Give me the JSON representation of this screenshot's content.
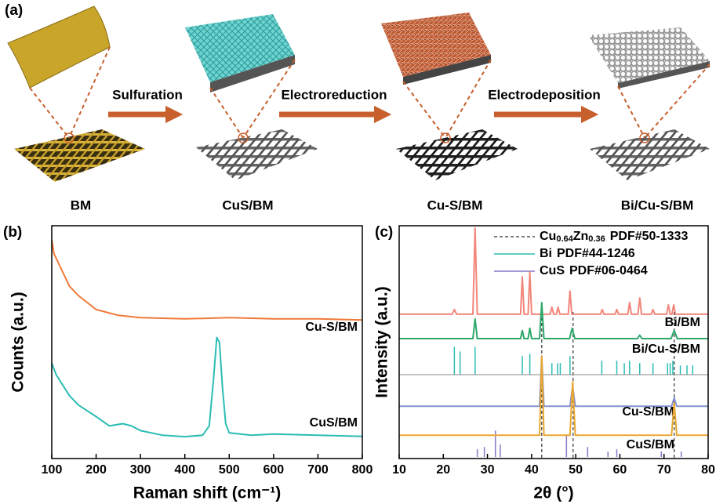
{
  "panel_a": {
    "label": "(a)",
    "steps": [
      "Sulfuration",
      "Electroreduction",
      "Electrodeposition"
    ],
    "samples": [
      "BM",
      "CuS/BM",
      "Cu-S/BM",
      "Bi/Cu-S/BM"
    ]
  },
  "chart_data": [
    {
      "type": "line",
      "panel_label": "(b)",
      "xlabel": "Raman shift (cm⁻¹)",
      "ylabel": "Counts (a.u.)",
      "xlim": [
        100,
        800
      ],
      "xticks": [
        100,
        200,
        300,
        400,
        500,
        600,
        700,
        800
      ],
      "ylim": [
        0,
        100
      ],
      "series": [
        {
          "name": "Cu-S/BM",
          "color": "#f07a3a",
          "x": [
            100,
            105,
            115,
            125,
            140,
            160,
            200,
            250,
            300,
            400,
            500,
            600,
            700,
            800
          ],
          "values": [
            94,
            88,
            84,
            80,
            74,
            70,
            64,
            61.5,
            60.5,
            60,
            60.5,
            60,
            60,
            59.5
          ]
        },
        {
          "name": "CuS/BM",
          "color": "#2bbcb4",
          "x": [
            100,
            110,
            120,
            140,
            160,
            200,
            230,
            260,
            280,
            300,
            350,
            400,
            440,
            455,
            465,
            472,
            478,
            485,
            492,
            500,
            550,
            600,
            700,
            800
          ],
          "values": [
            41,
            36,
            33,
            27,
            23,
            18,
            14,
            15,
            14,
            12,
            10,
            9.4,
            10,
            14,
            35,
            52,
            50,
            30,
            15,
            11,
            10,
            10.5,
            10,
            9.5
          ]
        }
      ]
    },
    {
      "type": "line",
      "panel_label": "(c)",
      "xlabel": "2θ (°)",
      "ylabel": "Intensity (a.u.)",
      "xlim": [
        10,
        80
      ],
      "xticks": [
        10,
        20,
        30,
        40,
        50,
        60,
        70,
        80
      ],
      "ylim": [
        0,
        100
      ],
      "series": [
        {
          "name": "Bi/BM",
          "color": "#f2867a",
          "x": [
            10,
            22,
            22.5,
            23,
            26.7,
            27.2,
            27.7,
            37.5,
            37.9,
            38.3,
            39.2,
            39.6,
            40,
            44.2,
            44.6,
            45,
            45.6,
            46,
            46.4,
            48.3,
            48.7,
            49.1,
            55.6,
            56,
            56.4,
            58.9,
            59.3,
            59.7,
            61.8,
            62.2,
            62.6,
            64.1,
            64.5,
            64.9,
            67.1,
            67.5,
            67.9,
            70.6,
            71,
            71.4,
            71.8,
            72.2,
            72.6,
            80
          ],
          "values": [
            62,
            62,
            64,
            62,
            62,
            99,
            62,
            62,
            78,
            62,
            62,
            80,
            62,
            62,
            65,
            62,
            62,
            65,
            62,
            62,
            72,
            62,
            62,
            64,
            62,
            62,
            64,
            62,
            62,
            67,
            62,
            62,
            69,
            62,
            62,
            64,
            62,
            62,
            66,
            62,
            62,
            66,
            62,
            62
          ]
        },
        {
          "name": "Bi/Cu-S/BM",
          "color": "#2ea86a",
          "x": [
            10,
            26.7,
            27.2,
            27.7,
            37.5,
            37.9,
            38.3,
            39.2,
            39.6,
            40,
            41.8,
            42.3,
            42.8,
            48.6,
            49.2,
            49.8,
            64,
            64.5,
            65,
            71.6,
            72.3,
            73,
            80
          ],
          "values": [
            51.5,
            51.5,
            60,
            51.5,
            51.5,
            55,
            51.5,
            51.5,
            56,
            51.5,
            51.5,
            67,
            51.5,
            51.5,
            56,
            51.5,
            51.5,
            53,
            51.5,
            51.5,
            55,
            51.5,
            51.5
          ]
        },
        {
          "name": "Cu-S/BM",
          "color": "#8590d0",
          "x": [
            10,
            41.8,
            42.3,
            42.8,
            48.7,
            49.3,
            49.9,
            71.7,
            72.3,
            72.9,
            80
          ],
          "values": [
            22.5,
            22.5,
            44,
            22.5,
            22.5,
            31,
            22.5,
            22.5,
            26,
            22.5,
            22.5
          ]
        },
        {
          "name": "CuS/BM",
          "color": "#e8a730",
          "x": [
            10,
            41.8,
            42.3,
            42.8,
            48.7,
            49.3,
            49.9,
            71.7,
            72.3,
            72.9,
            80
          ],
          "values": [
            10,
            10,
            44,
            10,
            10,
            33,
            10,
            10,
            24,
            10,
            10
          ]
        }
      ],
      "references": [
        {
          "formula": [
            "Cu",
            "0.64",
            "Zn",
            "0.36"
          ],
          "card": "PDF#50-1333",
          "color": "#333333",
          "style": "dashed",
          "x": [
            42.3,
            49.4,
            72.3
          ]
        },
        {
          "formula": [
            "Bi"
          ],
          "card": "PDF#44-1246",
          "color": "#2bbcb4",
          "style": "sticks",
          "x": [
            22.5,
            23.8,
            27.2,
            37.9,
            39.6,
            44.6,
            45.9,
            46.5,
            48.7,
            55.9,
            59.3,
            61,
            62.2,
            64.5,
            67.5,
            70.8,
            71.4,
            72,
            73.7,
            75.2,
            76.5
          ],
          "values": [
            48,
            46,
            48,
            44,
            45,
            41,
            41,
            41,
            44,
            42,
            42,
            41,
            42,
            41,
            41,
            41,
            41,
            42,
            40,
            40,
            40
          ]
        },
        {
          "formula": [
            "CuS"
          ],
          "card": "PDF#06-0464",
          "color": "#8878c8",
          "style": "sticks",
          "x": [
            27.7,
            29.3,
            31.8,
            32.9,
            47.9,
            52.7,
            57.3,
            59.3,
            69.4,
            73.9
          ],
          "values": [
            4,
            5,
            12,
            6,
            10,
            5,
            3,
            4,
            3,
            3
          ]
        }
      ]
    }
  ]
}
